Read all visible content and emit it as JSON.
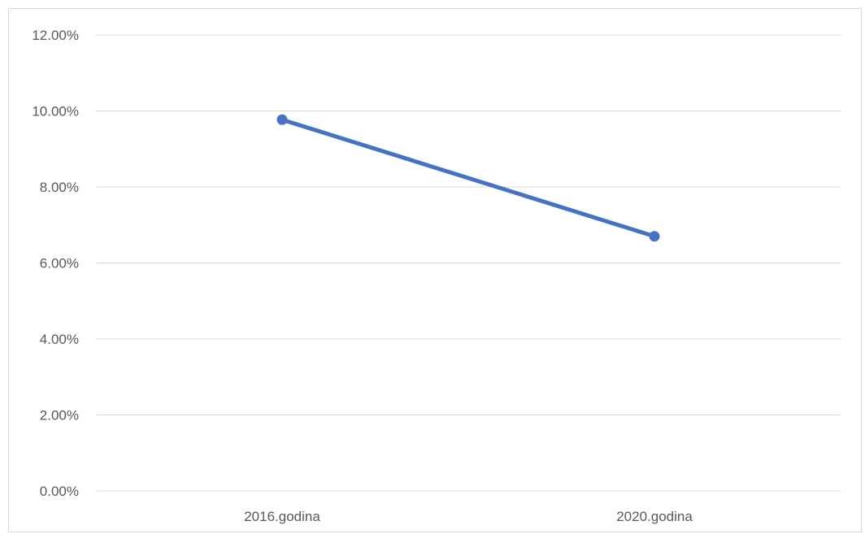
{
  "chart_data": {
    "type": "line",
    "title": "",
    "xlabel": "",
    "ylabel": "",
    "categories": [
      "2016.godina",
      "2020.godina"
    ],
    "series": [
      {
        "values": [
          0.0977,
          0.067
        ],
        "color": "#4472c4"
      }
    ],
    "ylim": [
      0,
      0.12
    ],
    "yticks": [
      0,
      0.02,
      0.04,
      0.06,
      0.08,
      0.1,
      0.12
    ],
    "ytick_labels": [
      "0.00%",
      "2.00%",
      "4.00%",
      "6.00%",
      "8.00%",
      "10.00%",
      "12.00%"
    ],
    "grid": true,
    "grid_color": "#d9d9d9",
    "legend": "none"
  }
}
